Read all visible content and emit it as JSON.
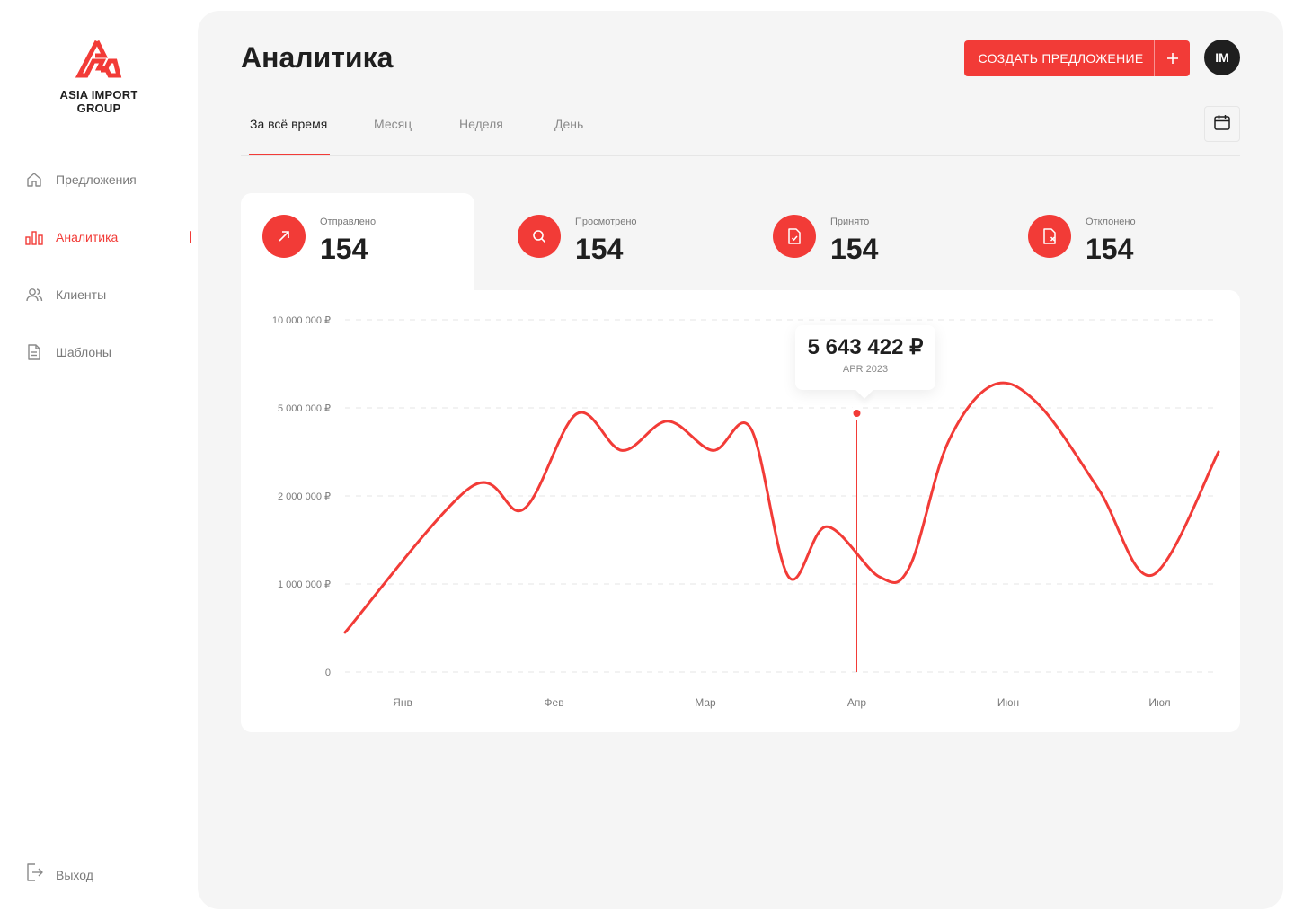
{
  "brand": {
    "name": "ASIA IMPORT GROUP",
    "accent": "#f23b37"
  },
  "sidebar": {
    "items": [
      {
        "label": "Предложения",
        "icon": "home-icon",
        "active": false
      },
      {
        "label": "Аналитика",
        "icon": "bar-chart-icon",
        "active": true
      },
      {
        "label": "Клиенты",
        "icon": "users-icon",
        "active": false
      },
      {
        "label": "Шаблоны",
        "icon": "document-icon",
        "active": false
      }
    ],
    "logout": {
      "label": "Выход",
      "icon": "logout-icon"
    }
  },
  "header": {
    "title": "Аналитика",
    "create_label": "СОЗДАТЬ ПРЕДЛОЖЕНИЕ",
    "avatar_initials": "IM"
  },
  "tabs": [
    {
      "label": "За всё время",
      "active": true
    },
    {
      "label": "Месяц",
      "active": false
    },
    {
      "label": "Неделя",
      "active": false
    },
    {
      "label": "День",
      "active": false
    }
  ],
  "stats": [
    {
      "label": "Отправлено",
      "value": "154",
      "icon": "arrow-up-right-icon"
    },
    {
      "label": "Просмотрено",
      "value": "154",
      "icon": "search-icon"
    },
    {
      "label": "Принято",
      "value": "154",
      "icon": "file-check-icon"
    },
    {
      "label": "Отклонено",
      "value": "154",
      "icon": "file-reject-icon"
    }
  ],
  "tooltip": {
    "value": "5 643 422 ₽",
    "label": "APR 2023"
  },
  "chart_data": {
    "type": "line",
    "yticks": [
      "10 000 000 ₽",
      "5 000 000 ₽",
      "2 000 000 ₽",
      "1 000 000 ₽",
      "0"
    ],
    "xticks": [
      "Янв",
      "Фев",
      "Мар",
      "Апр",
      "Июн",
      "Июл"
    ],
    "series": [
      {
        "color": "#f23b37",
        "points": [
          [
            0.0,
            0.45
          ],
          [
            0.45,
            2.3
          ],
          [
            0.8,
            1.85
          ],
          [
            1.15,
            4.8
          ],
          [
            1.45,
            3.55
          ],
          [
            1.75,
            4.55
          ],
          [
            2.05,
            3.55
          ],
          [
            2.3,
            4.3
          ],
          [
            2.55,
            1.08
          ],
          [
            2.8,
            1.65
          ],
          [
            3.15,
            1.08
          ],
          [
            3.35,
            1.2
          ],
          [
            3.6,
            3.8
          ],
          [
            3.9,
            6.3
          ],
          [
            4.2,
            5.2
          ],
          [
            4.6,
            2.2
          ],
          [
            4.95,
            1.1
          ],
          [
            5.3,
            3.5
          ]
        ]
      }
    ],
    "highlight_x": 3.0,
    "grid": true,
    "legend": "none"
  }
}
